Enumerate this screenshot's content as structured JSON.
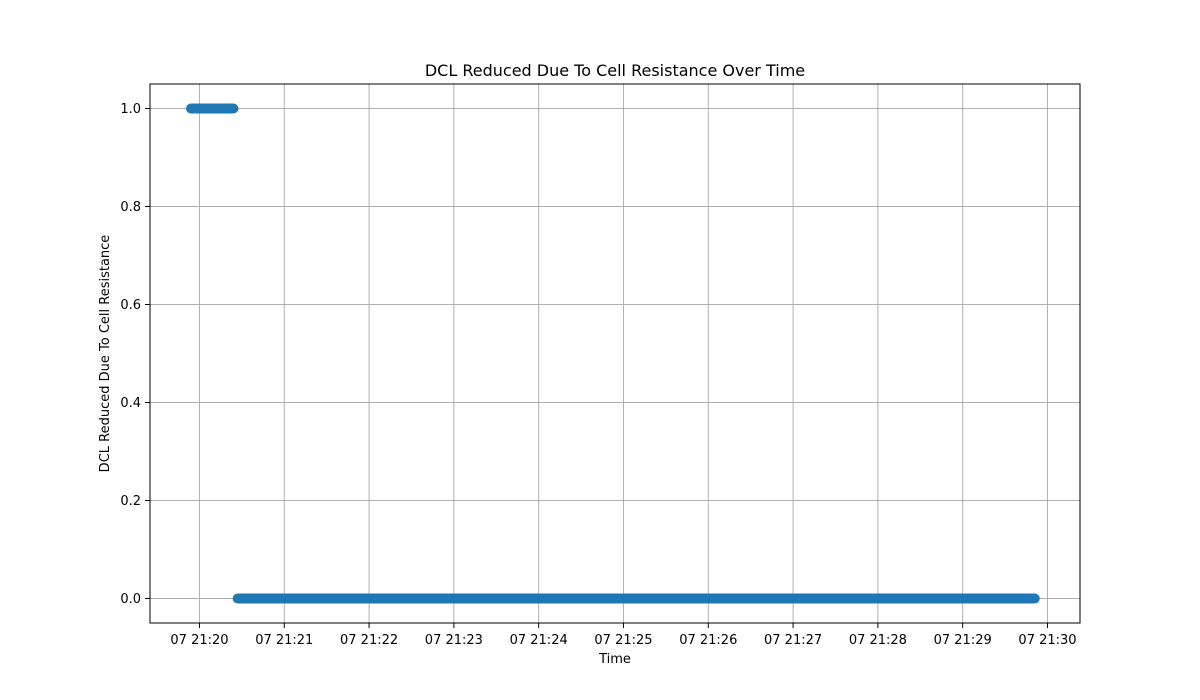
{
  "chart_data": {
    "type": "scatter",
    "title": "DCL Reduced Due To Cell Resistance Over Time",
    "xlabel": "Time",
    "ylabel": "DCL Reduced Due To Cell Resistance",
    "xlim": [
      "07 21:19:25",
      "07 21:30:23"
    ],
    "ylim": [
      -0.05,
      1.05
    ],
    "x_ticks": [
      "07 21:20",
      "07 21:21",
      "07 21:22",
      "07 21:23",
      "07 21:24",
      "07 21:25",
      "07 21:26",
      "07 21:27",
      "07 21:28",
      "07 21:29",
      "07 21:30"
    ],
    "y_ticks": [
      "0.0",
      "0.2",
      "0.4",
      "0.6",
      "0.8",
      "1.0"
    ],
    "grid": true,
    "series": [
      {
        "color": "#1f77b4",
        "segments": [
          {
            "x_start": "07 21:19:54",
            "x_end": "07 21:20:24",
            "y": 1.0
          },
          {
            "x_start": "07 21:20:27",
            "x_end": "07 21:29:51",
            "y": 0.0
          }
        ]
      }
    ]
  }
}
